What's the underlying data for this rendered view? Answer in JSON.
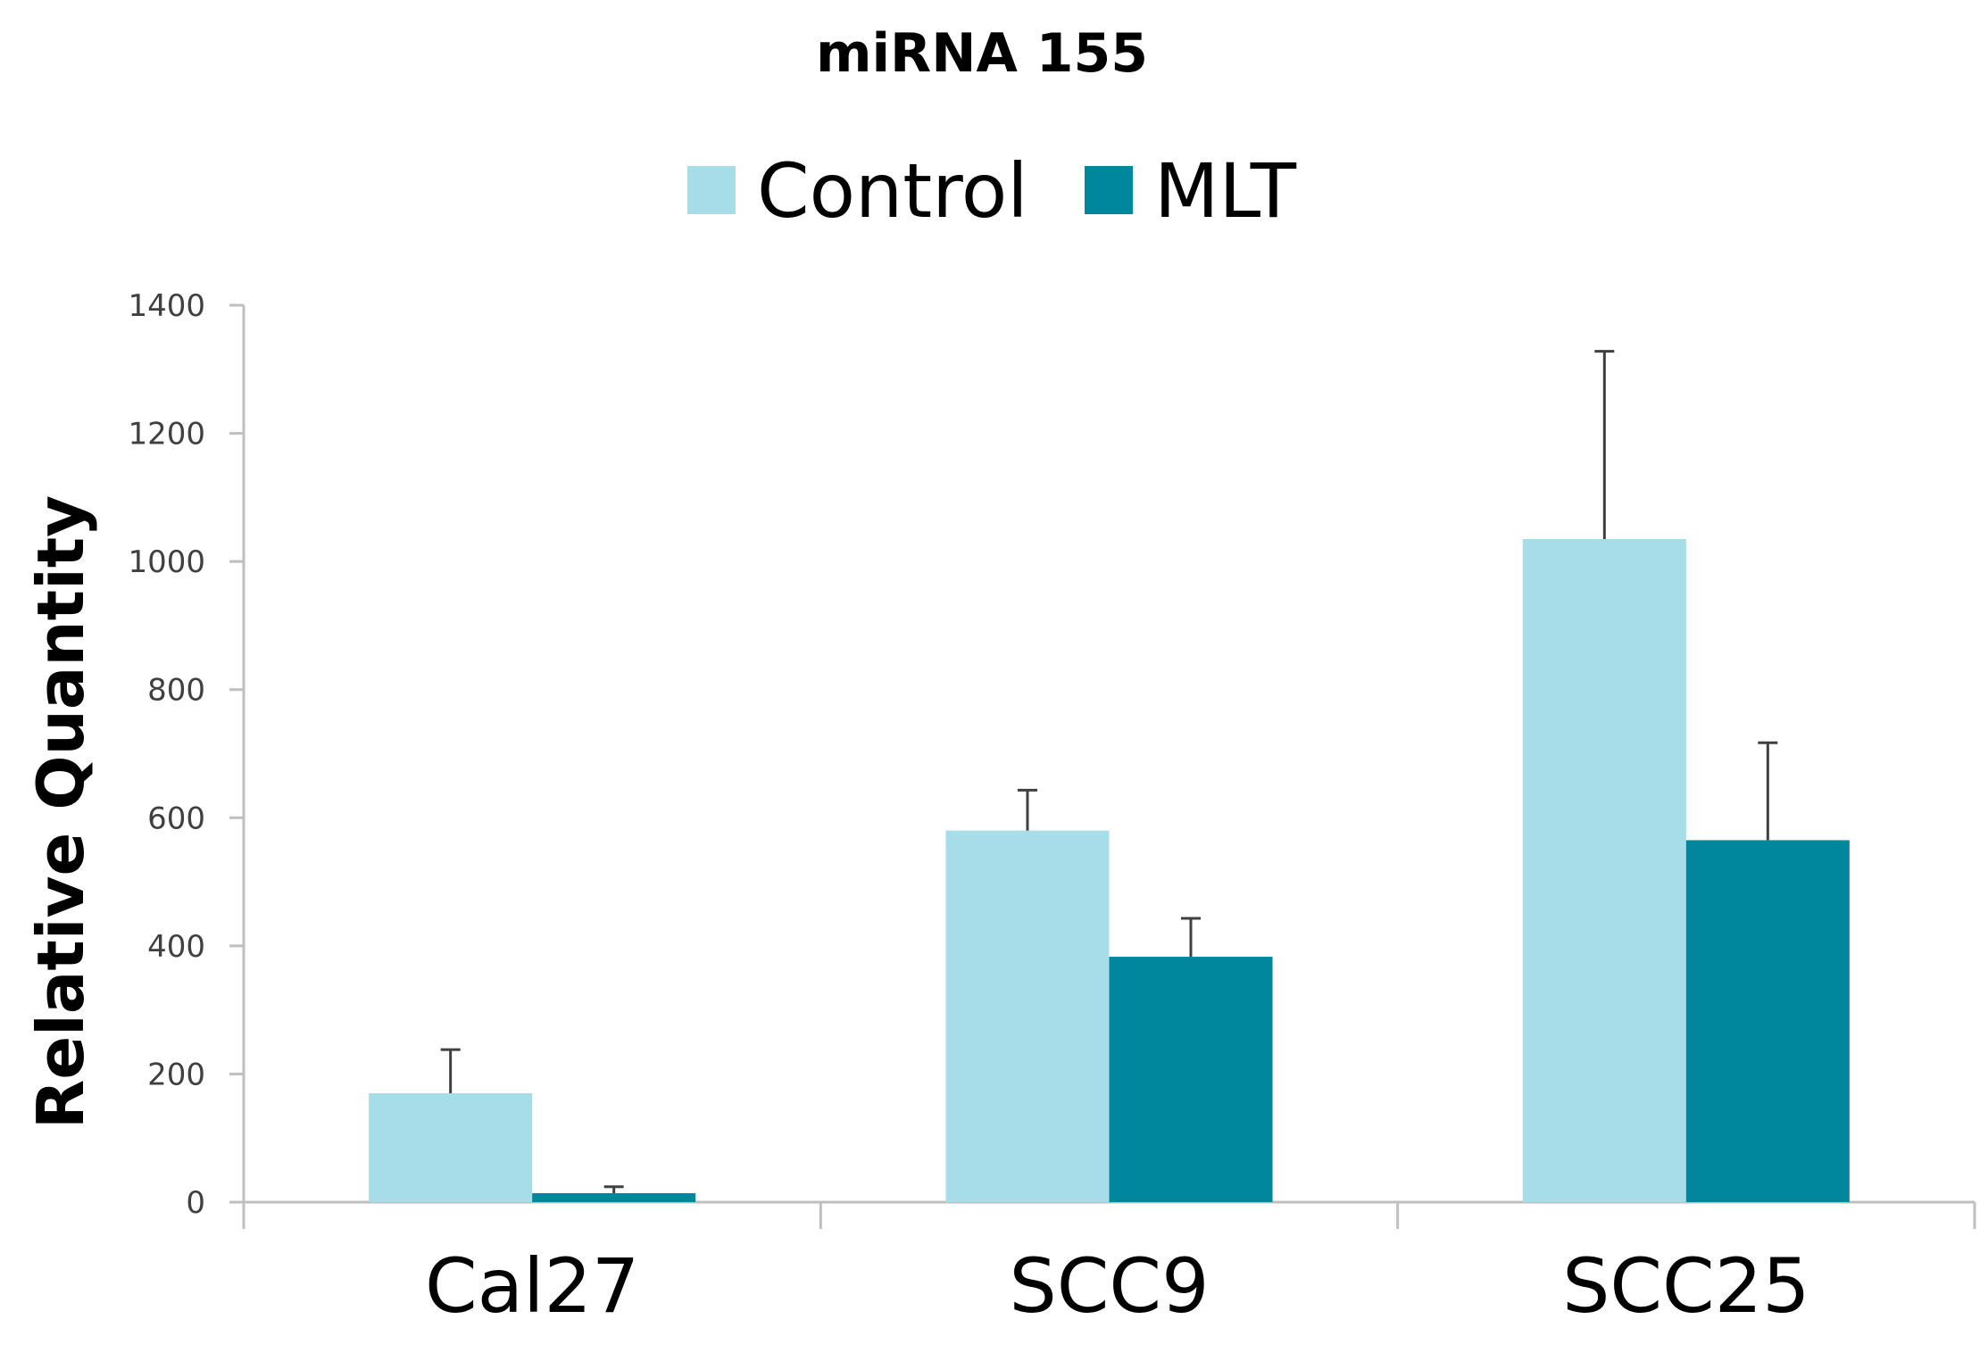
{
  "chart_data": {
    "type": "bar",
    "title": "miRNA 155",
    "ylabel": "Relative Quantity",
    "xlabel": "",
    "categories": [
      "Cal27",
      "SCC9",
      "SCC25"
    ],
    "ylim": [
      0,
      1400
    ],
    "yticks": [
      0,
      200,
      400,
      600,
      800,
      1000,
      1200,
      1400
    ],
    "grid": false,
    "legend_position": "top-center",
    "series": [
      {
        "name": "Control",
        "color": "#a7dde8",
        "values": [
          170,
          580,
          1035
        ],
        "errors": [
          68,
          63,
          293
        ]
      },
      {
        "name": "MLT",
        "color": "#00879e",
        "values": [
          14,
          383,
          565
        ],
        "errors": [
          10,
          60,
          152
        ]
      }
    ]
  }
}
